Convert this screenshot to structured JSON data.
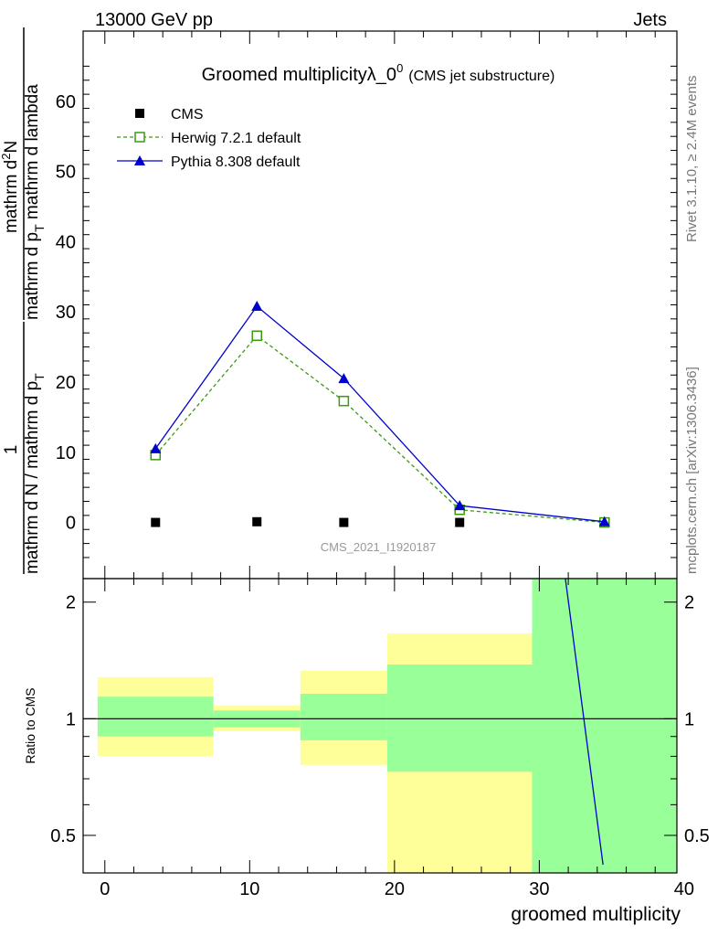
{
  "header": {
    "left": "13000 GeV pp",
    "right": "Jets"
  },
  "side_labels": {
    "rivet": "Rivet 3.1.10, ≥ 2.4M events",
    "mcplots": "mcplots.cern.ch [arXiv:1306.3436]"
  },
  "ylabel": {
    "numerator_1": "1",
    "denominator_1": "mathrm d N / mathrm d p",
    "denominator_1_sub": "T",
    "numerator_2": "mathrm d",
    "numerator_2_sup": "2",
    "numerator_2_tail": "N",
    "denominator_2_a": "mathrm d p",
    "denominator_2_sub": "T",
    "denominator_2_b": " mathrm d lambda"
  },
  "chart_data": [
    {
      "type": "line",
      "title_main": "Groomed multiplicityλ_0",
      "title_sup": "0",
      "title_note": "(CMS jet substructure)",
      "watermark": "CMS_2021_I1920187",
      "xlim": [
        -1.5,
        39.5
      ],
      "ylim": [
        -8,
        70
      ],
      "yticks": [
        0,
        10,
        20,
        30,
        40,
        50,
        60
      ],
      "series": [
        {
          "name": "CMS",
          "color": "#000000",
          "marker": "filled-square",
          "x": [
            3.5,
            10.5,
            16.5,
            24.5,
            34.5
          ],
          "values": [
            0.0,
            0.1,
            0.0,
            0.0,
            0.0
          ]
        },
        {
          "name": "Herwig 7.2.1 default",
          "color": "#3a9a10",
          "marker": "open-square",
          "line": "dashed",
          "x": [
            3.5,
            10.5,
            16.5,
            24.5,
            34.5
          ],
          "values": [
            9.6,
            26.6,
            17.3,
            1.8,
            0.0
          ]
        },
        {
          "name": "Pythia 8.308 default",
          "color": "#0000cc",
          "marker": "filled-triangle",
          "line": "solid",
          "x": [
            3.5,
            10.5,
            16.5,
            24.5,
            34.5
          ],
          "values": [
            10.5,
            30.8,
            20.5,
            2.4,
            0.1
          ]
        }
      ]
    },
    {
      "type": "area",
      "ylabel": "Ratio to CMS",
      "xlabel": "groomed multiplicity",
      "xlim": [
        -1.5,
        39.5
      ],
      "ylim": [
        0.4,
        2.3
      ],
      "yscale": "log",
      "yticks": [
        0.5,
        1,
        2
      ],
      "ytick_labels": [
        "0.5",
        "1",
        "2"
      ],
      "xticks": [
        0,
        10,
        20,
        30,
        40
      ],
      "xtick_labels": [
        "0",
        "10",
        "20",
        "30",
        "40"
      ],
      "bins": [
        {
          "x0": -0.5,
          "x1": 7.5,
          "yellow": [
            0.8,
            1.28
          ],
          "green": [
            0.9,
            1.14
          ]
        },
        {
          "x0": 7.5,
          "x1": 13.5,
          "yellow": [
            0.93,
            1.08
          ],
          "green": [
            0.95,
            1.05
          ]
        },
        {
          "x0": 13.5,
          "x1": 19.5,
          "yellow": [
            0.76,
            1.33
          ],
          "green": [
            0.88,
            1.16
          ]
        },
        {
          "x0": 19.5,
          "x1": 29.5,
          "yellow": [
            0.4,
            1.66
          ],
          "green": [
            0.73,
            1.38
          ]
        },
        {
          "x0": 29.5,
          "x1": 39.5,
          "yellow": [
            0.4,
            2.3
          ],
          "green": [
            0.4,
            2.3
          ]
        }
      ],
      "reference": 1,
      "pythia_ratio_line": {
        "color": "#0000cc",
        "x": [
          31.8,
          34.4
        ],
        "values": [
          2.3,
          0.42
        ]
      }
    }
  ]
}
